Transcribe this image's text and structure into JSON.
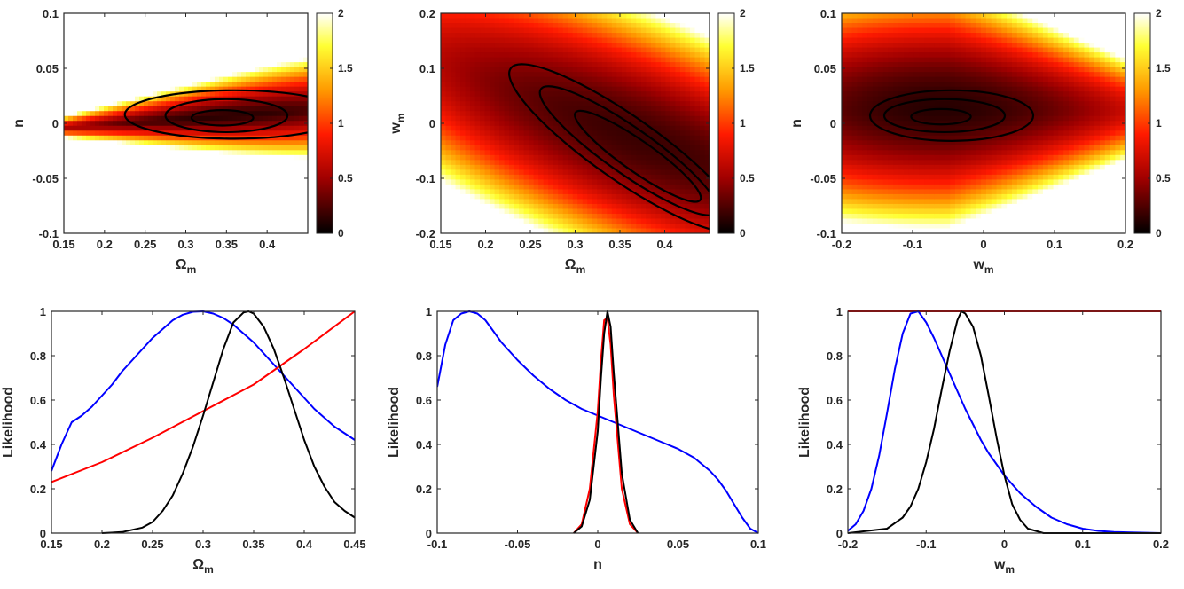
{
  "chart_data": [
    {
      "type": "heatmap",
      "xlabel": "Ω",
      "xlabel_sub": "m",
      "ylabel": "n",
      "ylabel_sub": "",
      "xlim": [
        0.15,
        0.45
      ],
      "ylim": [
        -0.1,
        0.1
      ],
      "xticks": [
        "0.15",
        "0.2",
        "0.25",
        "0.3",
        "0.35",
        "0.4"
      ],
      "xtick_values": [
        0.15,
        0.2,
        0.25,
        0.3,
        0.35,
        0.4
      ],
      "yticks": [
        "-0.1",
        "-0.05",
        "0",
        "0.05",
        "0.1"
      ],
      "ytick_values": [
        -0.1,
        -0.05,
        0,
        0.05,
        0.1
      ],
      "colorbar": {
        "range": [
          0,
          2
        ],
        "ticks": [
          "0",
          "0.5",
          "1",
          "1.5",
          "2"
        ],
        "tick_values": [
          0,
          0.5,
          1,
          1.5,
          2
        ],
        "colormap": "hot"
      },
      "minimum": [
        0.345,
        0.005
      ],
      "contours": [
        {
          "center": [
            0.345,
            0.005
          ],
          "rx": 0.038,
          "ry": 0.007,
          "rotation_deg": 0
        },
        {
          "center": [
            0.35,
            0.007
          ],
          "rx": 0.075,
          "ry": 0.015,
          "rotation_deg": 0
        },
        {
          "center": [
            0.36,
            0.008
          ],
          "rx": 0.135,
          "ry": 0.022,
          "rotation_deg": 0
        }
      ]
    },
    {
      "type": "heatmap",
      "xlabel": "Ω",
      "xlabel_sub": "m",
      "ylabel": "w",
      "ylabel_sub": "m",
      "xlim": [
        0.15,
        0.45
      ],
      "ylim": [
        -0.2,
        0.2
      ],
      "xticks": [
        "0.15",
        "0.2",
        "0.25",
        "0.3",
        "0.35",
        "0.4"
      ],
      "xtick_values": [
        0.15,
        0.2,
        0.25,
        0.3,
        0.35,
        0.4
      ],
      "yticks": [
        "-0.2",
        "-0.1",
        "0",
        "0.1",
        "0.2"
      ],
      "ytick_values": [
        -0.2,
        -0.1,
        0,
        0.1,
        0.2
      ],
      "colorbar": {
        "range": [
          0,
          2
        ],
        "ticks": [
          "0",
          "0.5",
          "1",
          "1.5",
          "2"
        ],
        "tick_values": [
          0,
          0.5,
          1,
          1.5,
          2
        ],
        "colormap": "hot"
      },
      "minimum": [
        0.36,
        -0.06
      ],
      "contours": [
        {
          "center": [
            0.37,
            -0.06
          ],
          "rx": 0.085,
          "ry": 0.028,
          "rotation_deg": 35
        },
        {
          "center": [
            0.36,
            -0.05
          ],
          "rx": 0.12,
          "ry": 0.042,
          "rotation_deg": 35
        },
        {
          "center": [
            0.355,
            -0.045
          ],
          "rx": 0.155,
          "ry": 0.058,
          "rotation_deg": 35
        }
      ]
    },
    {
      "type": "heatmap",
      "xlabel": "w",
      "xlabel_sub": "m",
      "ylabel": "n",
      "ylabel_sub": "",
      "xlim": [
        -0.2,
        0.2
      ],
      "ylim": [
        -0.1,
        0.1
      ],
      "xticks": [
        "-0.2",
        "-0.1",
        "0",
        "0.1",
        "0.2"
      ],
      "xtick_values": [
        -0.2,
        -0.1,
        0,
        0.1,
        0.2
      ],
      "yticks": [
        "-0.1",
        "-0.05",
        "0",
        "0.05",
        "0.1"
      ],
      "ytick_values": [
        -0.1,
        -0.05,
        0,
        0.05,
        0.1
      ],
      "colorbar": {
        "range": [
          0,
          2
        ],
        "ticks": [
          "0",
          "0.5",
          "1",
          "1.5",
          "2"
        ],
        "tick_values": [
          0,
          0.5,
          1,
          1.5,
          2
        ],
        "colormap": "hot"
      },
      "minimum": [
        -0.06,
        0.006
      ],
      "contours": [
        {
          "center": [
            -0.06,
            0.006
          ],
          "rx": 0.042,
          "ry": 0.007,
          "rotation_deg": 0
        },
        {
          "center": [
            -0.055,
            0.007
          ],
          "rx": 0.085,
          "ry": 0.015,
          "rotation_deg": 0
        },
        {
          "center": [
            -0.045,
            0.007
          ],
          "rx": 0.115,
          "ry": 0.023,
          "rotation_deg": 0
        }
      ]
    },
    {
      "type": "line",
      "xlabel": "Ω",
      "xlabel_sub": "m",
      "ylabel": "Likelihood",
      "ylabel_sub": "",
      "xlim": [
        0.15,
        0.45
      ],
      "ylim": [
        0,
        1
      ],
      "xticks": [
        "0.15",
        "0.2",
        "0.25",
        "0.3",
        "0.35",
        "0.4",
        "0.45"
      ],
      "xtick_values": [
        0.15,
        0.2,
        0.25,
        0.3,
        0.35,
        0.4,
        0.45
      ],
      "yticks": [
        "0",
        "0.2",
        "0.4",
        "0.6",
        "0.8",
        "1"
      ],
      "ytick_values": [
        0,
        0.2,
        0.4,
        0.6,
        0.8,
        1
      ],
      "series": [
        {
          "color": "#0000ff",
          "x": [
            0.15,
            0.16,
            0.17,
            0.18,
            0.19,
            0.2,
            0.21,
            0.22,
            0.23,
            0.24,
            0.25,
            0.26,
            0.27,
            0.28,
            0.29,
            0.3,
            0.31,
            0.32,
            0.33,
            0.34,
            0.35,
            0.36,
            0.37,
            0.38,
            0.39,
            0.4,
            0.41,
            0.42,
            0.43,
            0.44,
            0.45
          ],
          "y": [
            0.28,
            0.4,
            0.5,
            0.53,
            0.57,
            0.62,
            0.67,
            0.73,
            0.78,
            0.83,
            0.88,
            0.92,
            0.96,
            0.985,
            0.998,
            1.0,
            0.99,
            0.97,
            0.94,
            0.9,
            0.86,
            0.81,
            0.76,
            0.71,
            0.66,
            0.61,
            0.56,
            0.52,
            0.48,
            0.45,
            0.42
          ]
        },
        {
          "color": "#ff0000",
          "x": [
            0.15,
            0.2,
            0.25,
            0.3,
            0.35,
            0.4,
            0.45
          ],
          "y": [
            0.23,
            0.32,
            0.43,
            0.55,
            0.67,
            0.83,
            1.0
          ]
        },
        {
          "color": "#000000",
          "x": [
            0.2,
            0.22,
            0.24,
            0.25,
            0.26,
            0.27,
            0.28,
            0.29,
            0.3,
            0.31,
            0.32,
            0.33,
            0.34,
            0.345,
            0.35,
            0.36,
            0.37,
            0.38,
            0.39,
            0.4,
            0.41,
            0.42,
            0.43,
            0.44,
            0.45
          ],
          "y": [
            0.0,
            0.005,
            0.025,
            0.05,
            0.1,
            0.17,
            0.27,
            0.39,
            0.53,
            0.68,
            0.83,
            0.95,
            0.995,
            1.0,
            0.99,
            0.93,
            0.83,
            0.7,
            0.56,
            0.42,
            0.3,
            0.21,
            0.14,
            0.1,
            0.07
          ]
        }
      ]
    },
    {
      "type": "line",
      "xlabel": "n",
      "xlabel_sub": "",
      "ylabel": "Likelihood",
      "ylabel_sub": "",
      "xlim": [
        -0.1,
        0.1
      ],
      "ylim": [
        0,
        1
      ],
      "xticks": [
        "-0.1",
        "-0.05",
        "0",
        "0.05",
        "0.1"
      ],
      "xtick_values": [
        -0.1,
        -0.05,
        0,
        0.05,
        0.1
      ],
      "yticks": [
        "0",
        "0.2",
        "0.4",
        "0.6",
        "0.8",
        "1"
      ],
      "ytick_values": [
        0,
        0.2,
        0.4,
        0.6,
        0.8,
        1
      ],
      "series": [
        {
          "color": "#0000ff",
          "x": [
            -0.1,
            -0.095,
            -0.09,
            -0.085,
            -0.08,
            -0.075,
            -0.07,
            -0.065,
            -0.06,
            -0.055,
            -0.05,
            -0.04,
            -0.03,
            -0.02,
            -0.01,
            0,
            0.01,
            0.02,
            0.03,
            0.04,
            0.05,
            0.06,
            0.07,
            0.075,
            0.08,
            0.085,
            0.09,
            0.095,
            0.1
          ],
          "y": [
            0.66,
            0.85,
            0.96,
            0.99,
            1.0,
            0.99,
            0.96,
            0.91,
            0.86,
            0.82,
            0.78,
            0.71,
            0.65,
            0.6,
            0.56,
            0.53,
            0.5,
            0.47,
            0.44,
            0.41,
            0.38,
            0.34,
            0.28,
            0.24,
            0.19,
            0.13,
            0.07,
            0.02,
            0.0
          ]
        },
        {
          "color": "#ff0000",
          "x": [
            -0.015,
            -0.01,
            -0.005,
            0,
            0.002,
            0.004,
            0.006,
            0.008,
            0.01,
            0.015,
            0.02,
            0.025
          ],
          "y": [
            0.0,
            0.04,
            0.2,
            0.55,
            0.78,
            0.96,
            0.97,
            0.85,
            0.62,
            0.2,
            0.04,
            0.0
          ]
        },
        {
          "color": "#000000",
          "x": [
            -0.015,
            -0.01,
            -0.005,
            0,
            0.002,
            0.004,
            0.006,
            0.008,
            0.01,
            0.015,
            0.02,
            0.025
          ],
          "y": [
            0.0,
            0.03,
            0.15,
            0.46,
            0.7,
            0.9,
            1.0,
            0.93,
            0.72,
            0.27,
            0.06,
            0.0
          ]
        }
      ]
    },
    {
      "type": "line",
      "xlabel": "w",
      "xlabel_sub": "m",
      "ylabel": "Likelihood",
      "ylabel_sub": "",
      "xlim": [
        -0.2,
        0.2
      ],
      "ylim": [
        0,
        1
      ],
      "xticks": [
        "-0.2",
        "-0.1",
        "0",
        "0.1",
        "0.2"
      ],
      "xtick_values": [
        -0.2,
        -0.1,
        0,
        0.1,
        0.2
      ],
      "yticks": [
        "0",
        "0.2",
        "0.4",
        "0.6",
        "0.8",
        "1"
      ],
      "ytick_values": [
        0,
        0.2,
        0.4,
        0.6,
        0.8,
        1
      ],
      "series": [
        {
          "color": "#ff0000",
          "x": [
            -0.2,
            0.2
          ],
          "y": [
            1.0,
            1.0
          ]
        },
        {
          "color": "#0000ff",
          "x": [
            -0.2,
            -0.19,
            -0.18,
            -0.17,
            -0.16,
            -0.15,
            -0.14,
            -0.13,
            -0.12,
            -0.11,
            -0.1,
            -0.09,
            -0.08,
            -0.07,
            -0.06,
            -0.05,
            -0.04,
            -0.03,
            -0.02,
            -0.01,
            0,
            0.02,
            0.04,
            0.06,
            0.08,
            0.1,
            0.12,
            0.14,
            0.2
          ],
          "y": [
            0.01,
            0.04,
            0.1,
            0.2,
            0.35,
            0.54,
            0.74,
            0.9,
            0.99,
            1.0,
            0.95,
            0.88,
            0.8,
            0.72,
            0.64,
            0.56,
            0.49,
            0.42,
            0.36,
            0.31,
            0.26,
            0.18,
            0.12,
            0.07,
            0.04,
            0.02,
            0.01,
            0.005,
            0.0
          ]
        },
        {
          "color": "#000000",
          "x": [
            -0.2,
            -0.15,
            -0.13,
            -0.12,
            -0.11,
            -0.1,
            -0.09,
            -0.08,
            -0.07,
            -0.06,
            -0.055,
            -0.05,
            -0.04,
            -0.03,
            -0.02,
            -0.01,
            0,
            0.01,
            0.02,
            0.03,
            0.05,
            0.2
          ],
          "y": [
            0.0,
            0.02,
            0.07,
            0.12,
            0.2,
            0.32,
            0.47,
            0.65,
            0.82,
            0.96,
            1.0,
            0.99,
            0.93,
            0.8,
            0.62,
            0.43,
            0.26,
            0.13,
            0.06,
            0.02,
            0.0,
            0.0
          ]
        }
      ]
    }
  ]
}
